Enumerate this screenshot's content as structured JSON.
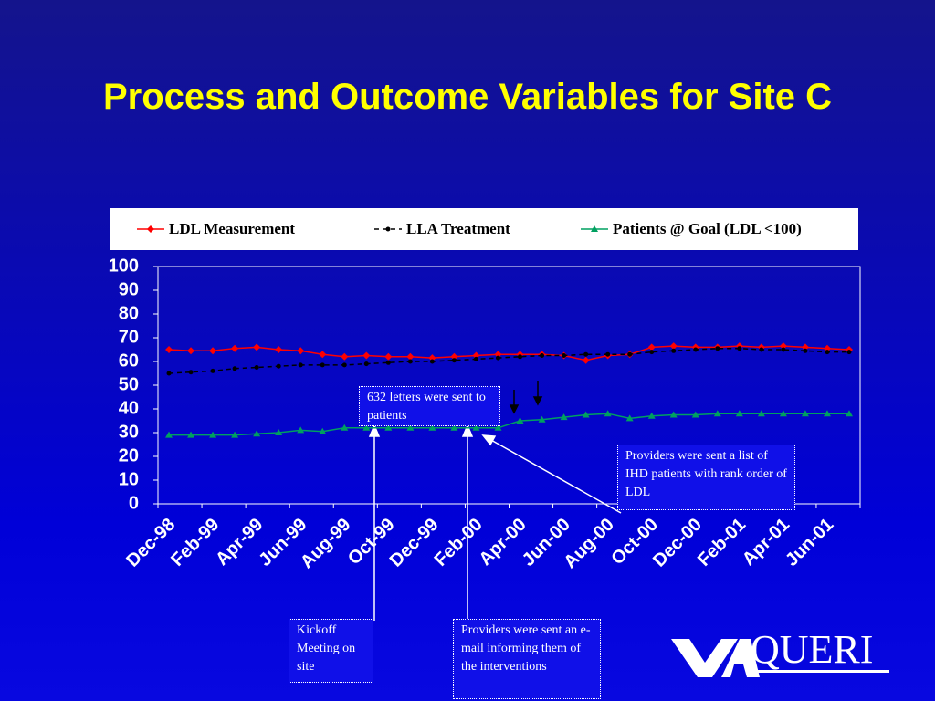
{
  "title": "Process and Outcome Variables for Site C",
  "chart_data": {
    "type": "line",
    "categories": [
      "Dec-98",
      null,
      "Feb-99",
      null,
      "Apr-99",
      null,
      "Jun-99",
      null,
      "Aug-99",
      null,
      "Oct-99",
      null,
      "Dec-99",
      null,
      "Feb-00",
      null,
      "Apr-00",
      null,
      "Jun-00",
      null,
      "Aug-00",
      null,
      "Oct-00",
      null,
      "Dec-00",
      null,
      "Feb-01",
      null,
      "Apr-01",
      null,
      "Jun-01",
      null
    ],
    "series": [
      {
        "name": "LDL Measurement",
        "color": "#ff0000",
        "marker": "diamond",
        "line_style": "solid",
        "values": [
          65,
          64.5,
          64.5,
          65.5,
          66,
          65,
          64.5,
          63,
          62,
          62.5,
          62,
          62,
          61.5,
          62,
          62.5,
          63,
          63,
          63,
          62.5,
          60.5,
          62.5,
          63,
          66,
          66.5,
          66,
          66,
          66.5,
          66,
          66.5,
          66,
          65.5,
          65
        ]
      },
      {
        "name": "LLA Treatment",
        "color": "#000000",
        "marker": "circle",
        "line_style": "dashed",
        "values": [
          55,
          55.5,
          56,
          57,
          57.5,
          58,
          58.5,
          58.5,
          58.5,
          59,
          59.5,
          60,
          60,
          60.5,
          61,
          61.5,
          62,
          62.5,
          62.5,
          63,
          63,
          63,
          64,
          64.5,
          65,
          65.5,
          65.5,
          65,
          65,
          64.5,
          64,
          64
        ]
      },
      {
        "name": "Patients @ Goal (LDL <100)",
        "color": "#00a060",
        "marker": "triangle",
        "line_style": "solid",
        "values": [
          29,
          29,
          29,
          29,
          29.5,
          30,
          31,
          30.5,
          32,
          32,
          32,
          32,
          32,
          32,
          32,
          32,
          35,
          35.5,
          36.5,
          37.5,
          38,
          36,
          37,
          37.5,
          37.5,
          38,
          38,
          38,
          38,
          38,
          38,
          38
        ]
      }
    ],
    "ylim": [
      0,
      100
    ],
    "yticks": [
      0,
      10,
      20,
      30,
      40,
      50,
      60,
      70,
      80,
      90,
      100
    ],
    "grid": false,
    "legend": "top",
    "annotations": [
      "632 letters were sent to patients",
      "Providers were sent a list of IHD patients with rank order of LDL",
      "Kickoff Meeting on site",
      "Providers were sent an e-mail informing them of the interventions"
    ]
  },
  "logo": "QUERI"
}
